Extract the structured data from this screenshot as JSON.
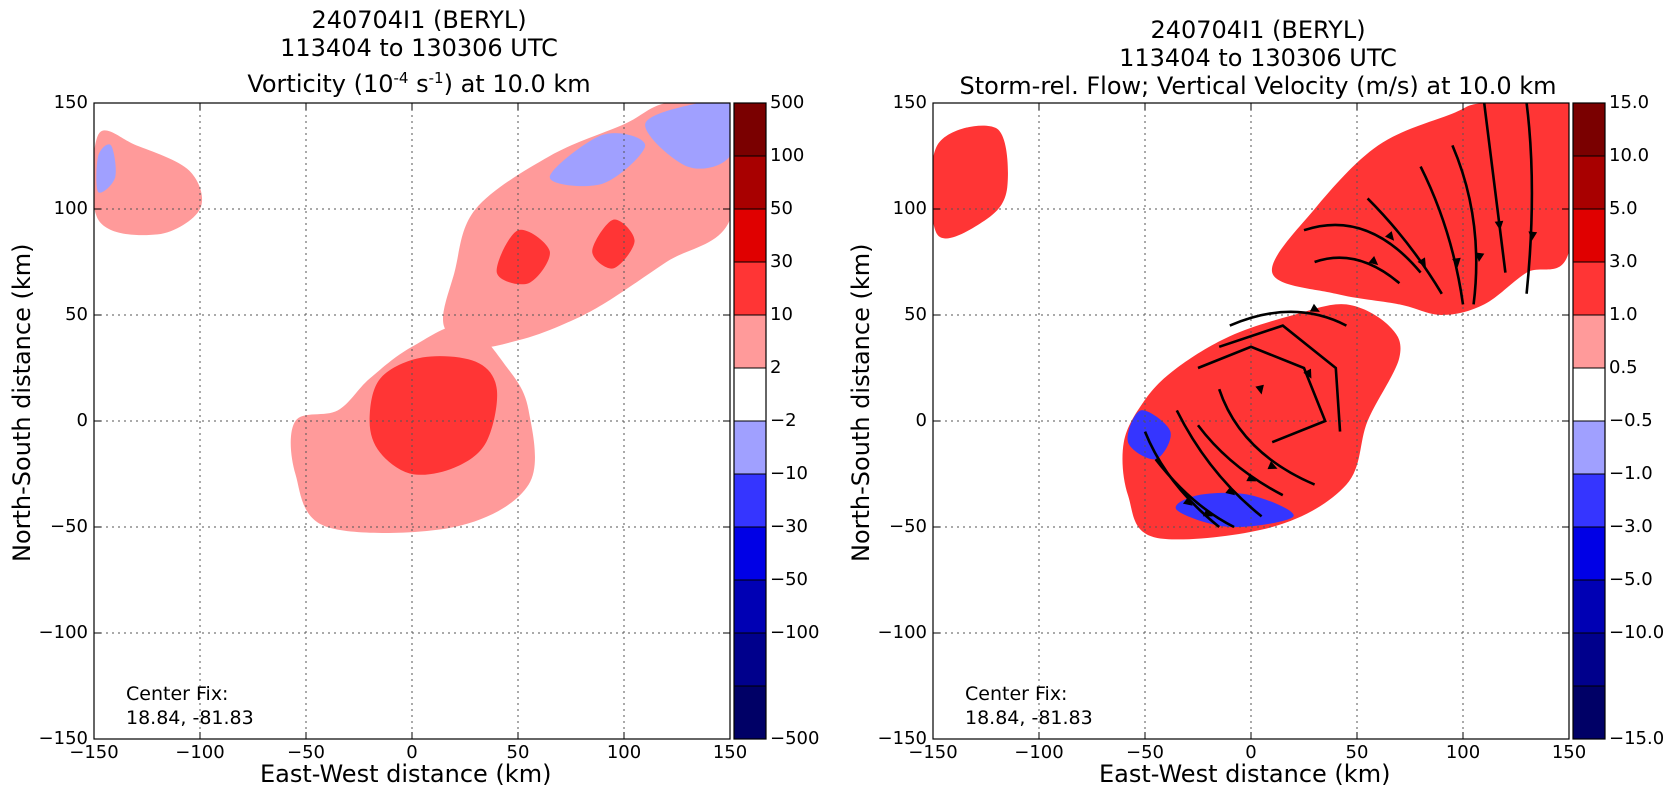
{
  "panels": [
    {
      "id": "vorticity",
      "title_lines": [
        "240704I1 (BERYL)",
        "113404 to 130306 UTC"
      ],
      "title_line3": {
        "prefix": "Vorticity (10",
        "sup1": "-4",
        "mid": " s",
        "sup2": "-1",
        "suffix": ") at 10.0 km"
      },
      "center_fix_label": "Center Fix:",
      "center_fix_value": "18.84, -81.83",
      "colorbar_labels": [
        "500",
        "100",
        "50",
        "30",
        "10",
        "2",
        "−2",
        "−10",
        "−30",
        "−50",
        "−100",
        "−500"
      ]
    },
    {
      "id": "vertical-velocity",
      "title_lines": [
        "240704I1 (BERYL)",
        "113404 to 130306 UTC",
        "Storm-rel. Flow; Vertical Velocity (m/s) at 10.0 km"
      ],
      "center_fix_label": "Center Fix:",
      "center_fix_value": "18.84, -81.83",
      "colorbar_labels": [
        "15.0",
        "10.0",
        "5.0",
        "3.0",
        "1.0",
        "0.5",
        "−0.5",
        "−1.0",
        "−3.0",
        "−5.0",
        "−10.0",
        "−15.0"
      ]
    }
  ],
  "axes": {
    "xlabel": "East-West distance (km)",
    "ylabel": "North-South distance (km)",
    "xlim": [
      -150,
      150
    ],
    "ylim": [
      -150,
      150
    ],
    "x_ticks": [
      -150,
      -100,
      -50,
      0,
      50,
      100,
      150
    ],
    "y_ticks": [
      -150,
      -100,
      -50,
      0,
      50,
      100,
      150
    ],
    "x_tick_labels": [
      "−150",
      "−100",
      "−50",
      "0",
      "50",
      "100",
      "150"
    ],
    "y_tick_labels": [
      "−150",
      "−100",
      "−50",
      "0",
      "50",
      "100",
      "150"
    ],
    "grid": true
  },
  "colors": {
    "scale": [
      "#7a0000",
      "#a80000",
      "#e00000",
      "#ff3535",
      "#ff9a9a",
      "#ffffff",
      "#a0a0ff",
      "#3535ff",
      "#0000e6",
      "#0000b4",
      "#00008c",
      "#000066"
    ],
    "mid_positive": "#ff3535",
    "light_positive": "#ff9a9a",
    "light_negative": "#a0a0ff",
    "mid_negative": "#3535ff"
  },
  "chart_data": [
    {
      "type": "heatmap",
      "title": "240704I1 (BERYL) 113404 to 130306 UTC Vorticity (10^-4 s^-1) at 10.0 km",
      "xlabel": "East-West distance (km)",
      "ylabel": "North-South distance (km)",
      "xlim": [
        -150,
        150
      ],
      "ylim": [
        -150,
        150
      ],
      "colorbar_levels": [
        -500,
        -100,
        -50,
        -30,
        -10,
        -2,
        2,
        10,
        30,
        50,
        100,
        500
      ],
      "annotation": "Center Fix: 18.84, -81.83",
      "regions": [
        {
          "level": "2 to 10",
          "points": [
            [
              -55,
              -25
            ],
            [
              -40,
              -50
            ],
            [
              20,
              -50
            ],
            [
              55,
              -30
            ],
            [
              55,
              5
            ],
            [
              45,
              25
            ],
            [
              25,
              45
            ],
            [
              0,
              35
            ],
            [
              -20,
              20
            ],
            [
              -35,
              5
            ],
            [
              -55,
              0
            ]
          ]
        },
        {
          "level": "10 to 30",
          "points": [
            [
              -20,
              0
            ],
            [
              -15,
              20
            ],
            [
              5,
              30
            ],
            [
              30,
              28
            ],
            [
              40,
              15
            ],
            [
              35,
              -10
            ],
            [
              20,
              -22
            ],
            [
              0,
              -25
            ],
            [
              -15,
              -15
            ]
          ]
        },
        {
          "level": "2 to 10",
          "points": [
            [
              15,
              45
            ],
            [
              20,
              70
            ],
            [
              30,
              100
            ],
            [
              65,
              125
            ],
            [
              100,
              140
            ],
            [
              120,
              150
            ],
            [
              150,
              150
            ],
            [
              150,
              95
            ],
            [
              120,
              75
            ],
            [
              90,
              55
            ],
            [
              70,
              45
            ],
            [
              50,
              38
            ],
            [
              30,
              35
            ]
          ]
        },
        {
          "level": "10 to 30",
          "points": [
            [
              40,
              70
            ],
            [
              50,
              90
            ],
            [
              65,
              80
            ],
            [
              55,
              65
            ]
          ]
        },
        {
          "level": "10 to 30",
          "points": [
            [
              85,
              80
            ],
            [
              95,
              95
            ],
            [
              105,
              85
            ],
            [
              95,
              72
            ]
          ]
        },
        {
          "level": "-10 to -2",
          "points": [
            [
              65,
              115
            ],
            [
              90,
              135
            ],
            [
              110,
              130
            ],
            [
              90,
              112
            ]
          ]
        },
        {
          "level": "-10 to -2",
          "points": [
            [
              110,
              140
            ],
            [
              135,
              150
            ],
            [
              150,
              150
            ],
            [
              150,
              125
            ],
            [
              130,
              120
            ]
          ]
        },
        {
          "level": "2 to 10",
          "points": [
            [
              -148,
              135
            ],
            [
              -130,
              130
            ],
            [
              -105,
              118
            ],
            [
              -100,
              100
            ],
            [
              -120,
              88
            ],
            [
              -148,
              95
            ]
          ]
        },
        {
          "level": "-10 to -2",
          "points": [
            [
              -148,
              125
            ],
            [
              -142,
              130
            ],
            [
              -140,
              115
            ],
            [
              -148,
              108
            ]
          ]
        }
      ]
    },
    {
      "type": "heatmap",
      "title": "240704I1 (BERYL) 113404 to 130306 UTC Storm-rel. Flow; Vertical Velocity (m/s) at 10.0 km",
      "xlabel": "East-West distance (km)",
      "ylabel": "North-South distance (km)",
      "xlim": [
        -150,
        150
      ],
      "ylim": [
        -150,
        150
      ],
      "colorbar_levels": [
        -15.0,
        -10.0,
        -5.0,
        -3.0,
        -1.0,
        -0.5,
        0.5,
        1.0,
        3.0,
        5.0,
        10.0,
        15.0
      ],
      "annotation": "Center Fix: 18.84, -81.83",
      "regions": [
        {
          "level": "1.0 to 3.0",
          "points": [
            [
              -58,
              -35
            ],
            [
              -45,
              -55
            ],
            [
              10,
              -50
            ],
            [
              45,
              -30
            ],
            [
              55,
              0
            ],
            [
              70,
              30
            ],
            [
              65,
              45
            ],
            [
              45,
              55
            ],
            [
              20,
              50
            ],
            [
              -10,
              40
            ],
            [
              -35,
              25
            ],
            [
              -50,
              10
            ],
            [
              -60,
              -10
            ]
          ]
        },
        {
          "level": "-3.0 to -1.0",
          "points": [
            [
              -58,
              -10
            ],
            [
              -45,
              -18
            ],
            [
              -38,
              -5
            ],
            [
              -52,
              5
            ]
          ]
        },
        {
          "level": "-3.0 to -1.0",
          "points": [
            [
              -35,
              -42
            ],
            [
              -10,
              -50
            ],
            [
              20,
              -45
            ],
            [
              0,
              -35
            ],
            [
              -25,
              -35
            ]
          ]
        },
        {
          "level": "1.0 to 3.0",
          "points": [
            [
              10,
              70
            ],
            [
              30,
              100
            ],
            [
              60,
              130
            ],
            [
              95,
              145
            ],
            [
              110,
              150
            ],
            [
              150,
              150
            ],
            [
              150,
              80
            ],
            [
              130,
              70
            ],
            [
              110,
              55
            ],
            [
              90,
              50
            ],
            [
              70,
              55
            ],
            [
              40,
              60
            ]
          ]
        },
        {
          "level": "1.0 to 3.0",
          "points": [
            [
              -148,
              130
            ],
            [
              -120,
              138
            ],
            [
              -115,
              110
            ],
            [
              -125,
              95
            ],
            [
              -148,
              88
            ]
          ]
        }
      ],
      "streamlines": 15
    }
  ]
}
